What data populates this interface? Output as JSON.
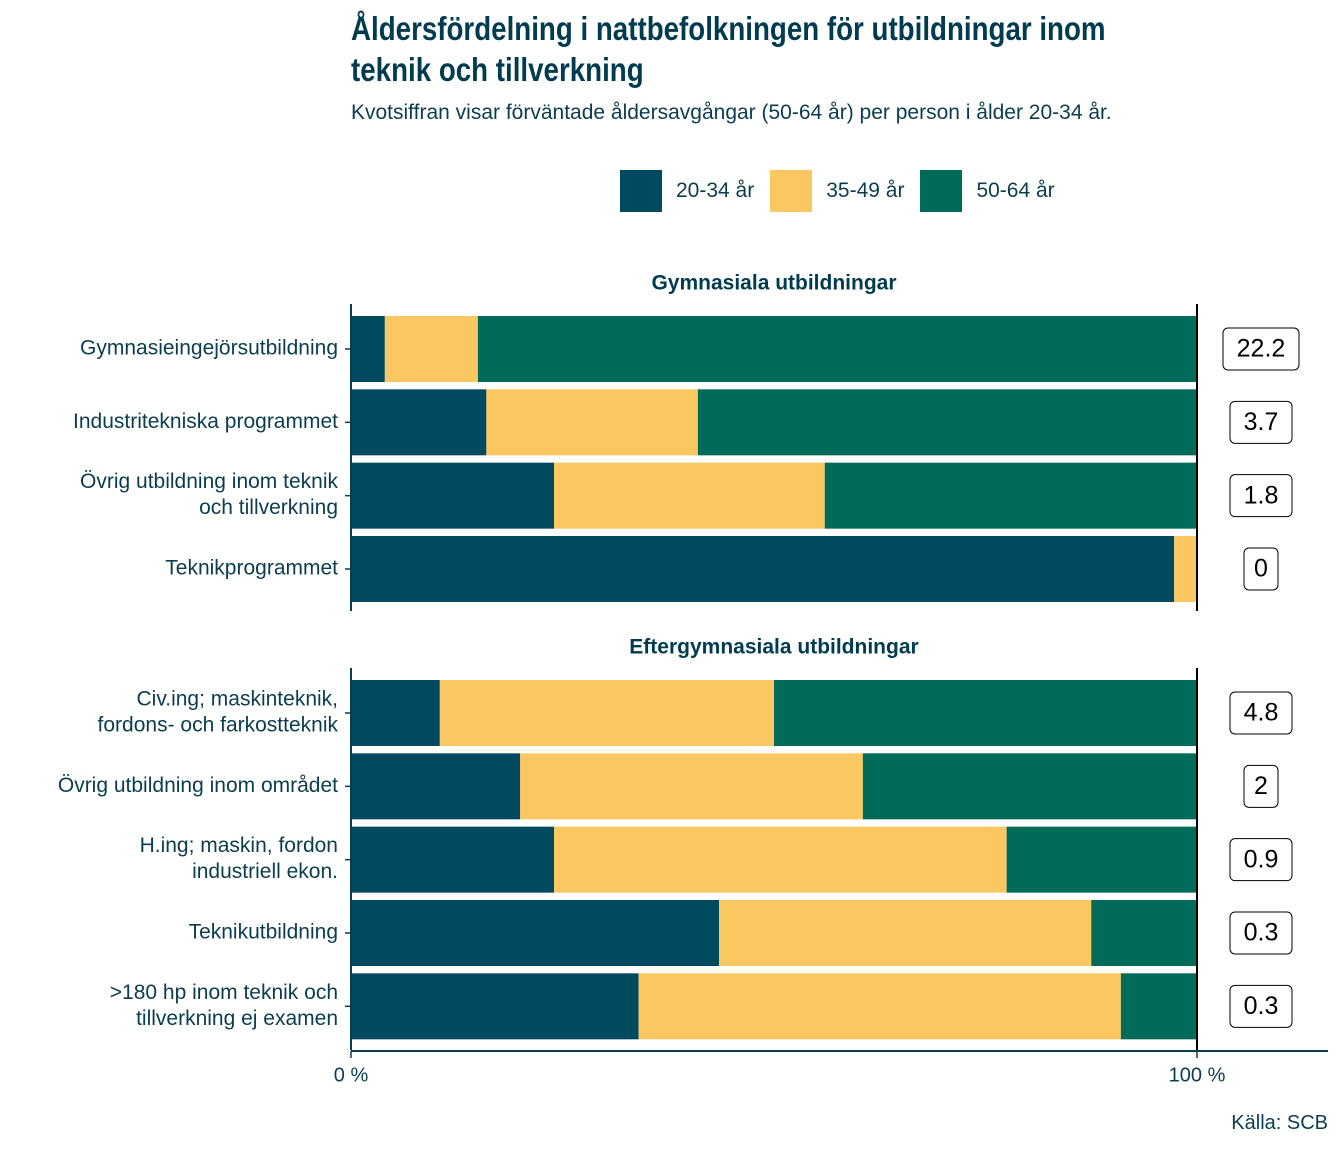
{
  "title": "Åldersfördelning i nattbefolkningen för utbildningar inom teknik och tillverkning",
  "subtitle": "Kvotsiffran visar förväntade åldersavgångar (50-64 år) per person i ålder 20-34 år.",
  "source": "Källa: SCB",
  "legend": [
    {
      "label": "20-34 år",
      "color": "#004a5f"
    },
    {
      "label": "35-49 år",
      "color": "#fac761"
    },
    {
      "label": "50-64 år",
      "color": "#006b58"
    }
  ],
  "chart_data": {
    "type": "bar",
    "orientation": "horizontal",
    "stacked": "percent",
    "title": "Åldersfördelning i nattbefolkningen för utbildningar inom teknik och tillverkning",
    "subtitle": "Kvotsiffran visar förväntade åldersavgångar (50-64 år) per person i ålder 20-34 år.",
    "series_names": [
      "20-34 år",
      "35-49 år",
      "50-64 år"
    ],
    "colors": [
      "#004a5f",
      "#fac761",
      "#006b58"
    ],
    "xlim": [
      0,
      100
    ],
    "x_ticks": [
      "0 %",
      "100 %"
    ],
    "panels": [
      {
        "name": "Gymnasiala utbildningar",
        "categories": [
          {
            "label": [
              "Gymnasieingejörsutbildning"
            ],
            "values": [
              4,
              11,
              85
            ],
            "ratio": "22.2"
          },
          {
            "label": [
              "Industritekniska programmet"
            ],
            "values": [
              16,
              25,
              59
            ],
            "ratio": "3.7"
          },
          {
            "label": [
              "Övrig utbildning inom teknik",
              "och tillverkning"
            ],
            "values": [
              24,
              32,
              44
            ],
            "ratio": "1.8"
          },
          {
            "label": [
              "Teknikprogrammet"
            ],
            "values": [
              97.3,
              2.7,
              0
            ],
            "ratio": "0"
          }
        ]
      },
      {
        "name": "Eftergymnasiala utbildningar",
        "categories": [
          {
            "label": [
              "Civ.ing; maskinteknik,",
              "fordons- och farkostteknik"
            ],
            "values": [
              10.5,
              39.5,
              50
            ],
            "ratio": "4.8"
          },
          {
            "label": [
              "Övrig utbildning inom området"
            ],
            "values": [
              20,
              40.5,
              39.5
            ],
            "ratio": "2"
          },
          {
            "label": [
              "H.ing; maskin, fordon",
              "industriell ekon."
            ],
            "values": [
              24,
              53.5,
              22.5
            ],
            "ratio": "0.9"
          },
          {
            "label": [
              "Teknikutbildning"
            ],
            "values": [
              43.5,
              44,
              12.5
            ],
            "ratio": "0.3"
          },
          {
            "label": [
              ">180 hp inom teknik och",
              "tillverkning ej examen"
            ],
            "values": [
              34,
              57,
              9
            ],
            "ratio": "0.3"
          }
        ]
      }
    ]
  }
}
